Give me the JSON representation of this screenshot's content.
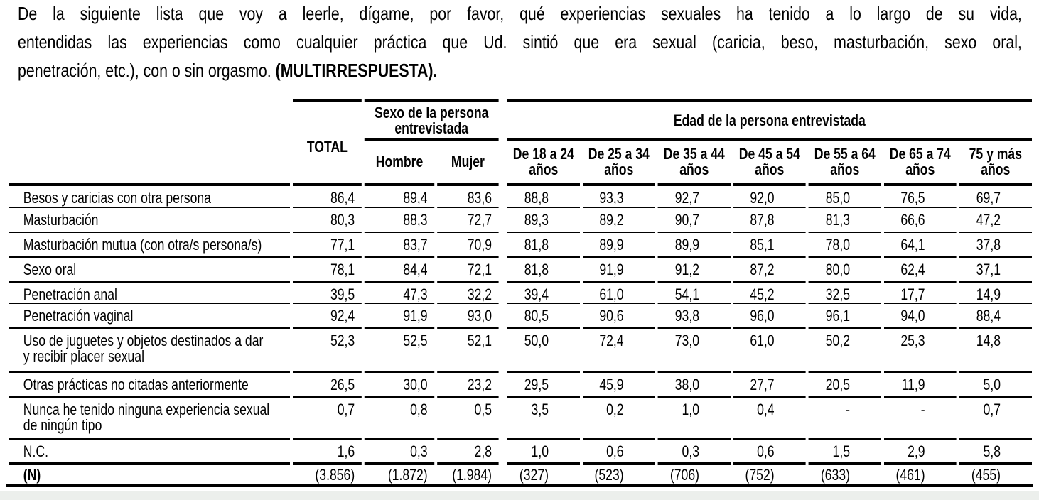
{
  "question": {
    "lines": [
      "De la siguiente lista que voy a leerle, dígame, por favor, qué experiencias sexuales ha tenido a lo largo de su vida,",
      "entendidas las experiencias como cualquier práctica que Ud. sintió que era sexual (caricia, beso, masturbación, sexo oral,",
      "penetración, etc.), con o sin orgasmo."
    ],
    "emphasis": "(MULTIRRESPUESTA)."
  },
  "table": {
    "total_label": "TOTAL",
    "sex_group": {
      "label_line1": "Sexo de la persona",
      "label_line2": "entrevistada",
      "columns": [
        "Hombre",
        "Mujer"
      ]
    },
    "age_group": {
      "label": "Edad de la persona entrevistada",
      "columns": [
        [
          "De 18 a 24",
          "años"
        ],
        [
          "De 25 a 34",
          "años"
        ],
        [
          "De 35 a 44",
          "años"
        ],
        [
          "De 45 a 54",
          "años"
        ],
        [
          "De 55 a 64",
          "años"
        ],
        [
          "De 65 a 74",
          "años"
        ],
        [
          "75 y más",
          "años"
        ]
      ]
    },
    "rows": [
      {
        "label": [
          "Besos y caricias con otra persona"
        ],
        "values": [
          "86,4",
          "89,4",
          "83,6",
          "88,8",
          "93,3",
          "92,7",
          "92,0",
          "85,0",
          "76,5",
          "69,7"
        ]
      },
      {
        "label": [
          "Masturbación"
        ],
        "values": [
          "80,3",
          "88,3",
          "72,7",
          "89,3",
          "89,2",
          "90,7",
          "87,8",
          "81,3",
          "66,6",
          "47,2"
        ]
      },
      {
        "label": [
          "Masturbación mutua (con otra/s persona/s)"
        ],
        "values": [
          "77,1",
          "83,7",
          "70,9",
          "81,8",
          "89,9",
          "89,9",
          "85,1",
          "78,0",
          "64,1",
          "37,8"
        ]
      },
      {
        "label": [
          "Sexo oral"
        ],
        "values": [
          "78,1",
          "84,4",
          "72,1",
          "81,8",
          "91,9",
          "91,2",
          "87,2",
          "80,0",
          "62,4",
          "37,1"
        ]
      },
      {
        "label": [
          "Penetración anal"
        ],
        "values": [
          "39,5",
          "47,3",
          "32,2",
          "39,4",
          "61,0",
          "54,1",
          "45,2",
          "32,5",
          "17,7",
          "14,9"
        ]
      },
      {
        "label": [
          "Penetración vaginal"
        ],
        "values": [
          "92,4",
          "91,9",
          "93,0",
          "80,5",
          "90,6",
          "93,8",
          "96,0",
          "96,1",
          "94,0",
          "88,4"
        ]
      },
      {
        "label": [
          "Uso de juguetes y objetos destinados a dar",
          "y recibir placer sexual"
        ],
        "values": [
          "52,3",
          "52,5",
          "52,1",
          "50,0",
          "72,4",
          "73,0",
          "61,0",
          "50,2",
          "25,3",
          "14,8"
        ]
      },
      {
        "label": [
          "Otras prácticas no citadas anteriormente"
        ],
        "values": [
          "26,5",
          "30,0",
          "23,2",
          "29,5",
          "45,9",
          "38,0",
          "27,7",
          "20,5",
          "11,9",
          "5,0"
        ]
      },
      {
        "label": [
          "Nunca he tenido ninguna experiencia sexual",
          "de ningún tipo"
        ],
        "values": [
          "0,7",
          "0,8",
          "0,5",
          "3,5",
          "0,2",
          "1,0",
          "0,4",
          "-",
          "-",
          "0,7"
        ]
      },
      {
        "label": [
          "N.C."
        ],
        "values": [
          "1,6",
          "0,3",
          "2,8",
          "1,0",
          "0,6",
          "0,3",
          "0,6",
          "1,5",
          "2,9",
          "5,8"
        ]
      },
      {
        "label": [
          "(N)"
        ],
        "bold": true,
        "values": [
          "(3.856)",
          "(1.872)",
          "(1.984)",
          "(327)",
          "(523)",
          "(706)",
          "(752)",
          "(633)",
          "(461)",
          "(455)"
        ]
      }
    ]
  },
  "colors": {
    "text": "#000000",
    "rule": "#000000",
    "page_edge_strip": "#ecefec"
  }
}
